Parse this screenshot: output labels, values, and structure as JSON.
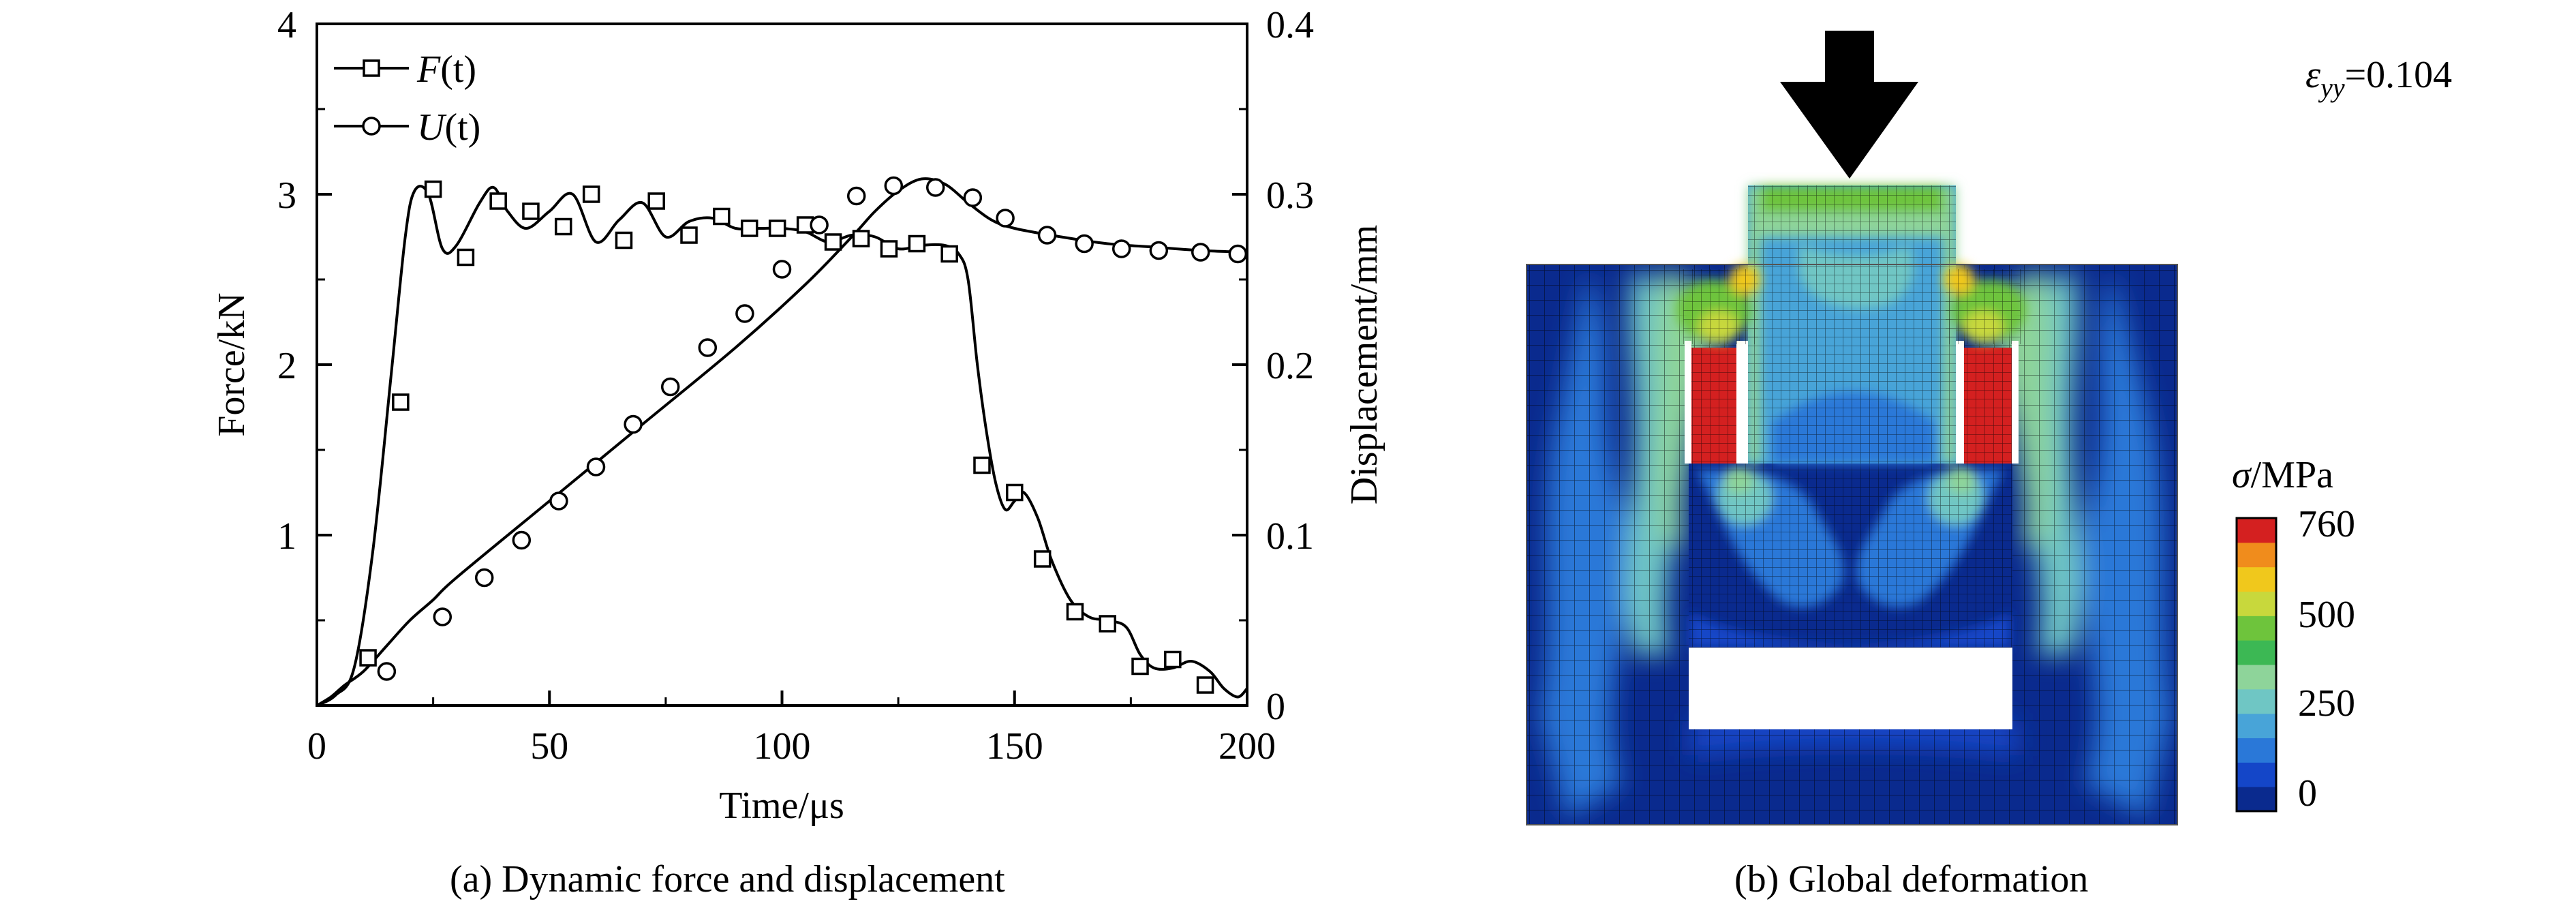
{
  "captions": {
    "a": "(a) Dynamic force and displacement",
    "b": "(b) Global deformation"
  },
  "chart_data": {
    "type": "line",
    "xlabel": "Time/μs",
    "ylabel": "Force/kN",
    "y2label": "Displacement/mm",
    "xlim": [
      0,
      200
    ],
    "ylim": [
      0,
      4
    ],
    "y2lim": [
      0,
      0.4
    ],
    "xticks": [
      "0",
      "50",
      "100",
      "150",
      "200"
    ],
    "yticks": [
      "1",
      "2",
      "3",
      "4"
    ],
    "y2ticks": [
      "0",
      "0.1",
      "0.2",
      "0.3",
      "0.4"
    ],
    "legend_position": "top-left",
    "series": [
      {
        "name": "F(t)",
        "name_italic": "F",
        "name_suffix": "(t)",
        "axis": "left",
        "marker": "square",
        "line": [
          [
            0,
            0
          ],
          [
            4,
            0.06
          ],
          [
            8,
            0.22
          ],
          [
            12,
            0.9
          ],
          [
            16,
            1.95
          ],
          [
            19,
            2.75
          ],
          [
            21,
            3.02
          ],
          [
            24,
            3.0
          ],
          [
            27,
            2.68
          ],
          [
            30,
            2.7
          ],
          [
            35,
            2.95
          ],
          [
            38,
            3.04
          ],
          [
            41,
            2.9
          ],
          [
            45,
            2.8
          ],
          [
            50,
            2.9
          ],
          [
            55,
            3.0
          ],
          [
            60,
            2.72
          ],
          [
            65,
            2.85
          ],
          [
            70,
            2.95
          ],
          [
            75,
            2.75
          ],
          [
            80,
            2.84
          ],
          [
            85,
            2.86
          ],
          [
            90,
            2.8
          ],
          [
            95,
            2.8
          ],
          [
            100,
            2.8
          ],
          [
            105,
            2.78
          ],
          [
            110,
            2.72
          ],
          [
            115,
            2.76
          ],
          [
            120,
            2.75
          ],
          [
            125,
            2.68
          ],
          [
            130,
            2.7
          ],
          [
            135,
            2.7
          ],
          [
            138,
            2.65
          ],
          [
            140,
            2.5
          ],
          [
            142,
            2.0
          ],
          [
            144,
            1.6
          ],
          [
            146,
            1.3
          ],
          [
            148,
            1.15
          ],
          [
            150,
            1.2
          ],
          [
            152,
            1.25
          ],
          [
            155,
            1.1
          ],
          [
            158,
            0.85
          ],
          [
            162,
            0.62
          ],
          [
            166,
            0.52
          ],
          [
            170,
            0.5
          ],
          [
            174,
            0.46
          ],
          [
            177,
            0.3
          ],
          [
            180,
            0.22
          ],
          [
            184,
            0.22
          ],
          [
            188,
            0.26
          ],
          [
            192,
            0.2
          ],
          [
            195,
            0.1
          ],
          [
            198,
            0.05
          ],
          [
            200,
            0.1
          ]
        ],
        "markers": [
          [
            11,
            0.28
          ],
          [
            18,
            1.78
          ],
          [
            25,
            3.03
          ],
          [
            32,
            2.63
          ],
          [
            39,
            2.96
          ],
          [
            46,
            2.9
          ],
          [
            53,
            2.81
          ],
          [
            59,
            3.0
          ],
          [
            66,
            2.73
          ],
          [
            73,
            2.96
          ],
          [
            80,
            2.76
          ],
          [
            87,
            2.87
          ],
          [
            93,
            2.8
          ],
          [
            99,
            2.8
          ],
          [
            105,
            2.82
          ],
          [
            111,
            2.72
          ],
          [
            117,
            2.74
          ],
          [
            123,
            2.68
          ],
          [
            129,
            2.71
          ],
          [
            136,
            2.65
          ],
          [
            143,
            1.41
          ],
          [
            150,
            1.25
          ],
          [
            156,
            0.86
          ],
          [
            163,
            0.55
          ],
          [
            170,
            0.48
          ],
          [
            177,
            0.23
          ],
          [
            184,
            0.27
          ],
          [
            191,
            0.12
          ]
        ]
      },
      {
        "name": "U(t)",
        "name_italic": "U",
        "name_suffix": "(t)",
        "axis": "right",
        "marker": "circle",
        "line": [
          [
            0,
            0
          ],
          [
            3,
            0.005
          ],
          [
            6,
            0.012
          ],
          [
            10,
            0.02
          ],
          [
            15,
            0.035
          ],
          [
            20,
            0.05
          ],
          [
            25,
            0.062
          ],
          [
            30,
            0.075
          ],
          [
            50,
            0.12
          ],
          [
            70,
            0.165
          ],
          [
            90,
            0.21
          ],
          [
            105,
            0.247
          ],
          [
            115,
            0.275
          ],
          [
            120,
            0.29
          ],
          [
            125,
            0.302
          ],
          [
            130,
            0.309
          ],
          [
            135,
            0.306
          ],
          [
            140,
            0.295
          ],
          [
            145,
            0.285
          ],
          [
            150,
            0.28
          ],
          [
            160,
            0.275
          ],
          [
            170,
            0.271
          ],
          [
            180,
            0.269
          ],
          [
            190,
            0.267
          ],
          [
            200,
            0.266
          ]
        ],
        "markers": [
          [
            15,
            0.02
          ],
          [
            27,
            0.052
          ],
          [
            36,
            0.075
          ],
          [
            44,
            0.097
          ],
          [
            52,
            0.12
          ],
          [
            60,
            0.14
          ],
          [
            68,
            0.165
          ],
          [
            76,
            0.187
          ],
          [
            84,
            0.21
          ],
          [
            92,
            0.23
          ],
          [
            100,
            0.256
          ],
          [
            108,
            0.282
          ],
          [
            116,
            0.299
          ],
          [
            124,
            0.305
          ],
          [
            133,
            0.304
          ],
          [
            141,
            0.298
          ],
          [
            148,
            0.286
          ],
          [
            157,
            0.276
          ],
          [
            165,
            0.271
          ],
          [
            173,
            0.268
          ],
          [
            181,
            0.267
          ],
          [
            190,
            0.266
          ],
          [
            198,
            0.265
          ]
        ]
      }
    ]
  },
  "stress_map": {
    "legend_title": "σ/MPa",
    "legend_ticks": [
      "760",
      "500",
      "250",
      "0"
    ],
    "strain_label": "ε",
    "strain_subscript": "yy",
    "strain_value": "=0.104",
    "colors": [
      "#0a2a8e",
      "#1446c8",
      "#2a78d8",
      "#48a4d8",
      "#6fc6c4",
      "#8ed49a",
      "#3cb854",
      "#6ec43c",
      "#c8d83c",
      "#f0c81c",
      "#f08c1c",
      "#d42020"
    ]
  }
}
